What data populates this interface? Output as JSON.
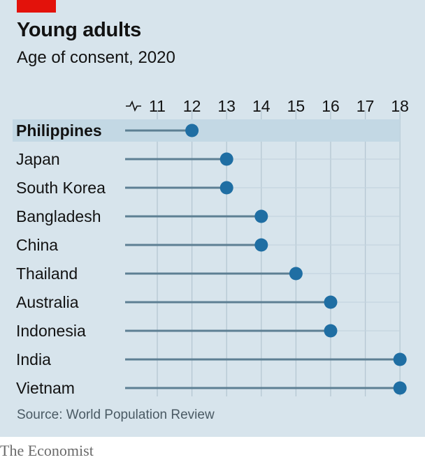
{
  "header": {
    "title": "Young adults",
    "subtitle": "Age of consent, 2020"
  },
  "footer": {
    "source": "Source: World Population Review",
    "brand": "The Economist"
  },
  "colors": {
    "background": "#d7e4ec",
    "accent_red": "#e3120b",
    "dot": "#1f6ea3",
    "stem": "#5d7f93",
    "highlight": "#c3d8e4"
  },
  "chart_data": {
    "type": "dot",
    "title": "Young adults",
    "subtitle": "Age of consent, 2020",
    "axis": {
      "ticks": [
        11,
        12,
        13,
        14,
        15,
        16,
        17,
        18
      ],
      "xlim": [
        10,
        18
      ],
      "broken_axis": true,
      "position": "top"
    },
    "highlighted": "Philippines",
    "categories": [
      "Philippines",
      "Japan",
      "South Korea",
      "Bangladesh",
      "China",
      "Thailand",
      "Australia",
      "Indonesia",
      "India",
      "Vietnam"
    ],
    "values": [
      12,
      13,
      13,
      14,
      14,
      15,
      16,
      16,
      18,
      18
    ]
  }
}
